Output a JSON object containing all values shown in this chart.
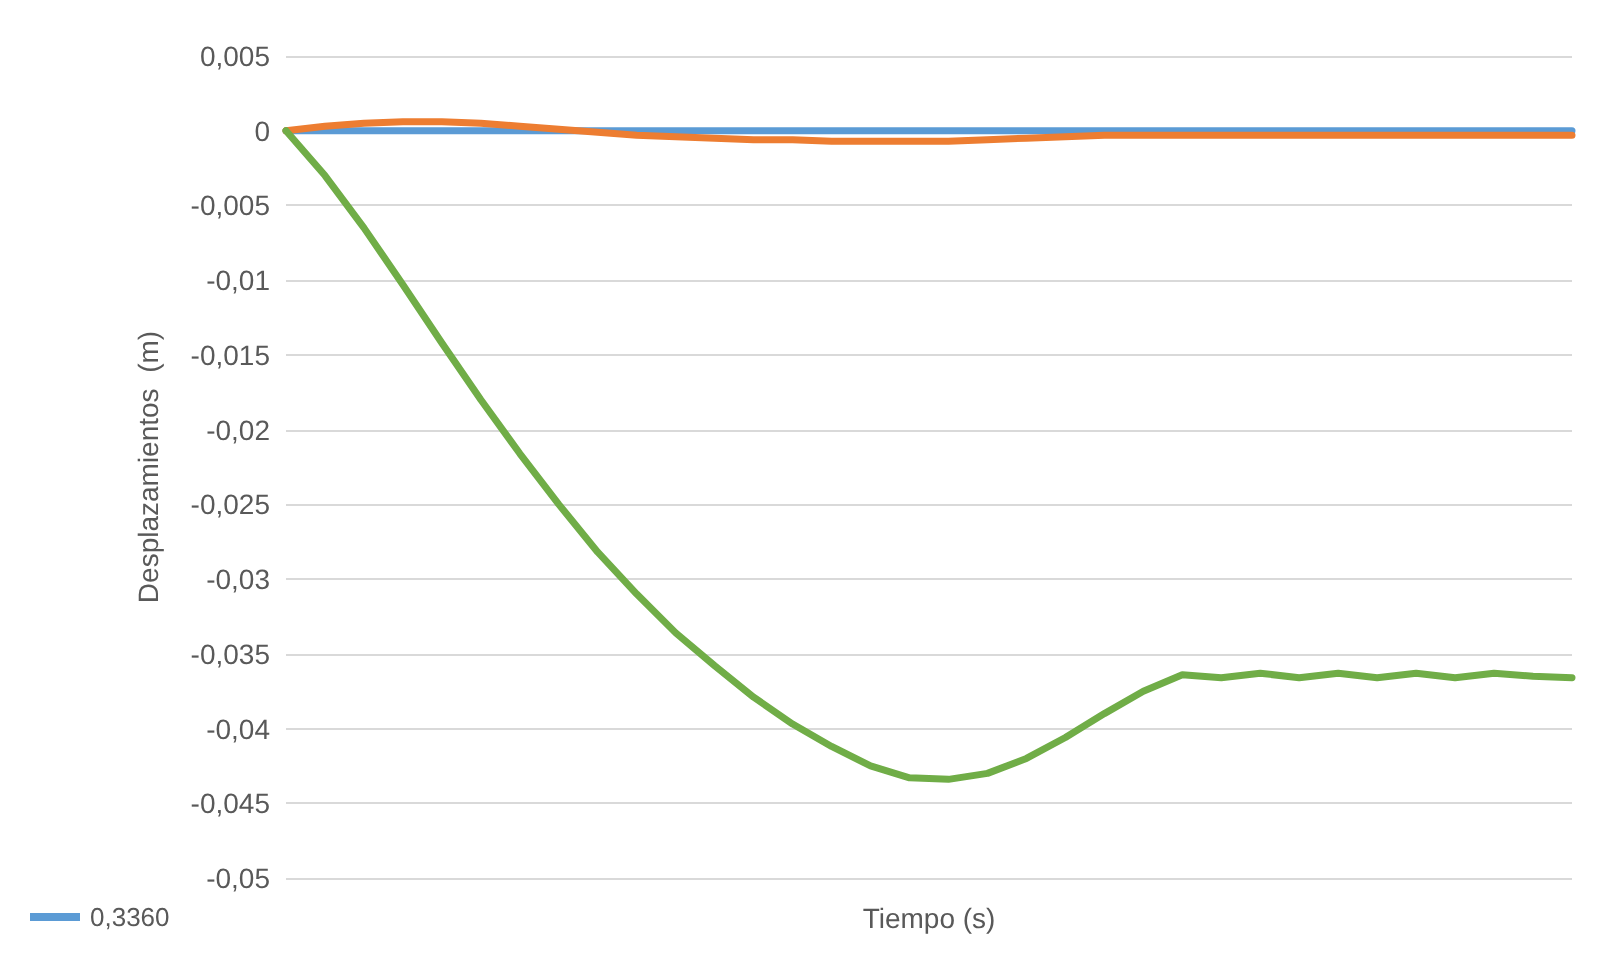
{
  "chart_data": {
    "type": "line",
    "xlabel": "Tiempo (s)",
    "ylabel": "Desplazamientos  (m)",
    "categories": [
      null,
      null,
      null,
      null,
      null,
      null,
      null,
      null,
      null,
      null,
      null,
      null,
      null,
      null,
      null,
      null,
      null,
      null,
      null,
      null,
      null,
      null,
      null,
      null,
      null,
      null,
      null,
      null,
      null,
      null,
      null,
      null,
      null,
      null
    ],
    "series": [
      {
        "name": "0,3360",
        "color": "#5b9bd5",
        "values": [
          0,
          0,
          0,
          0,
          0,
          0,
          0,
          0,
          0,
          0,
          0,
          0,
          0,
          0,
          0,
          0,
          0,
          0,
          0,
          0,
          0,
          0,
          0,
          0,
          0,
          0,
          0,
          0,
          0,
          0,
          0,
          0,
          0,
          0
        ]
      },
      {
        "color": "#ed7d31",
        "values": [
          0,
          0.0003,
          0.0005,
          0.0006,
          0.0006,
          0.0005,
          0.0003,
          0.0001,
          -0.0001,
          -0.0003,
          -0.0004,
          -0.0005,
          -0.0006,
          -0.0006,
          -0.0007,
          -0.0007,
          -0.0007,
          -0.0007,
          -0.0006,
          -0.0005,
          -0.0004,
          -0.0003,
          -0.0003,
          -0.0003,
          -0.0003,
          -0.0003,
          -0.0003,
          -0.0003,
          -0.0003,
          -0.0003,
          -0.0003,
          -0.0003,
          -0.0003,
          -0.0003
        ]
      },
      {
        "color": "#70ad47",
        "values": [
          0,
          -0.003,
          -0.0065,
          -0.0103,
          -0.0142,
          -0.018,
          -0.0216,
          -0.025,
          -0.0282,
          -0.031,
          -0.0336,
          -0.0358,
          -0.0379,
          -0.0397,
          -0.0412,
          -0.0425,
          -0.0433,
          -0.0434,
          -0.043,
          -0.042,
          -0.0406,
          -0.039,
          -0.0375,
          -0.0364,
          -0.0366,
          -0.0363,
          -0.0366,
          -0.0363,
          -0.0366,
          -0.0363,
          -0.0366,
          -0.0363,
          -0.0365,
          -0.0366
        ]
      }
    ],
    "ylim": [
      -0.05,
      0.005
    ],
    "yticks": [
      {
        "value": 0.005,
        "label": "0,005"
      },
      {
        "value": 0,
        "label": "0"
      },
      {
        "value": -0.005,
        "label": "-0,005"
      },
      {
        "value": -0.01,
        "label": "-0,01"
      },
      {
        "value": -0.015,
        "label": "-0,015"
      },
      {
        "value": -0.02,
        "label": "-0,02"
      },
      {
        "value": -0.025,
        "label": "-0,025"
      },
      {
        "value": -0.03,
        "label": "-0,03"
      },
      {
        "value": -0.035,
        "label": "-0,035"
      },
      {
        "value": -0.04,
        "label": "-0,04"
      },
      {
        "value": -0.045,
        "label": "-0,045"
      },
      {
        "value": -0.05,
        "label": "-0,05"
      }
    ],
    "grid": "y",
    "legend": "bottom left",
    "marker": "none",
    "line_style": "solid"
  }
}
